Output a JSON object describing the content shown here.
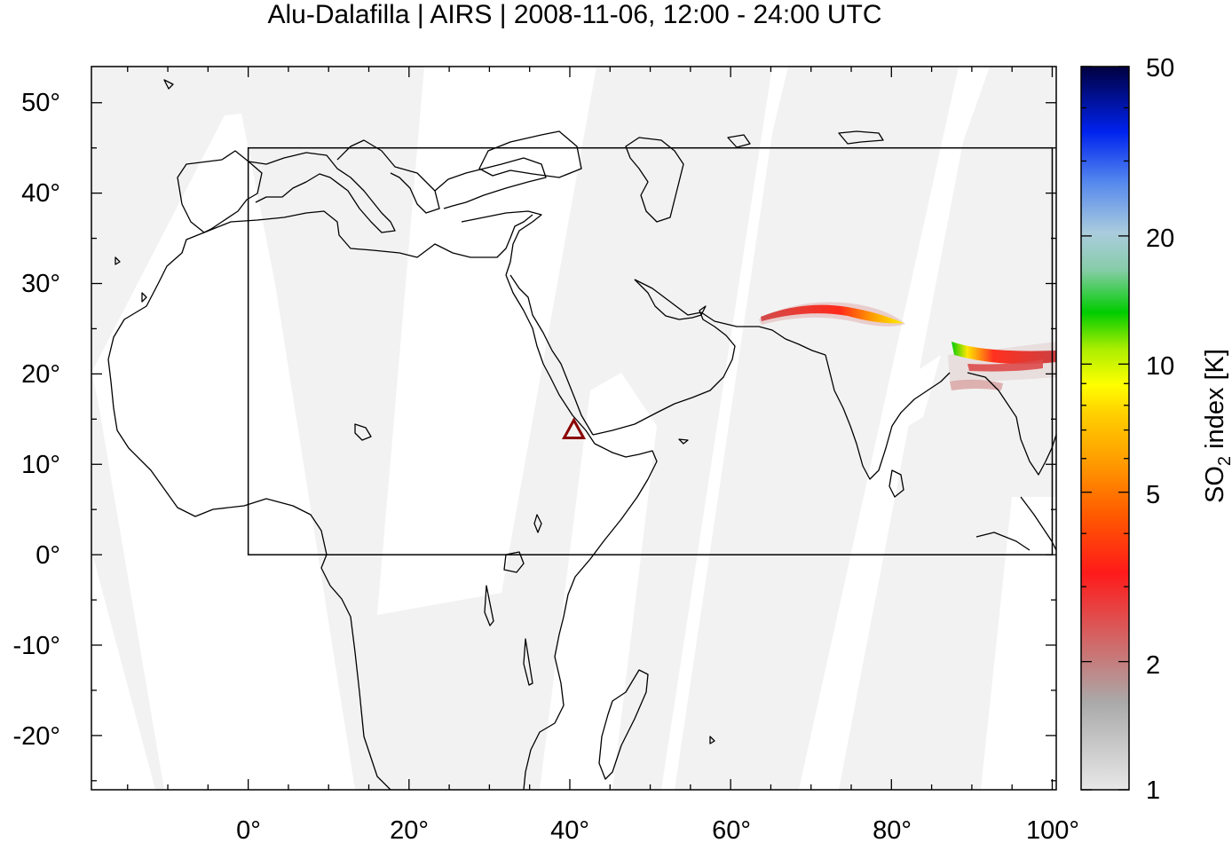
{
  "title": "Alu-Dalafilla | AIRS | 2008-11-06, 12:00 - 24:00 UTC",
  "map": {
    "x_ticks": [
      "0°",
      "20°",
      "40°",
      "60°",
      "80°",
      "100°"
    ],
    "y_ticks": [
      "50°",
      "40°",
      "30°",
      "20°",
      "10°",
      "0°",
      "-10°",
      "-20°"
    ],
    "lon_range": [
      -19.5,
      100.5
    ],
    "lat_range": [
      -26,
      54
    ],
    "region_box": {
      "lon": [
        0,
        100
      ],
      "lat": [
        0,
        45
      ]
    },
    "volcano": {
      "name": "Alu-Dalafilla",
      "lon": 40.5,
      "lat": 13.8,
      "color": "#8b0000"
    },
    "swath_color": "#f2f2f2"
  },
  "colorbar": {
    "label_main": "SO",
    "label_sub": "2",
    "label_rest": " index [K]",
    "scale": "log",
    "ticks": [
      "50",
      "20",
      "10",
      "5",
      "2",
      "1"
    ],
    "tick_values": [
      50,
      20,
      10,
      5,
      2,
      1
    ]
  }
}
